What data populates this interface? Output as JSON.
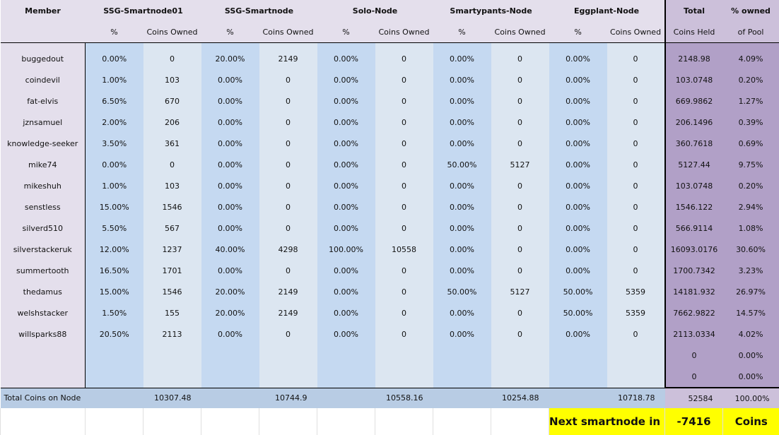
{
  "header": {
    "member": "Member",
    "nodes": [
      "SSG-Smartnode01",
      "SSG-Smartnode",
      "Solo-Node",
      "Smartypants-Node",
      "Eggplant-Node"
    ],
    "pct_label": "%",
    "coins_label": "Coins Owned",
    "total_label": "Total",
    "owned_label": "% owned",
    "coins_held_label": "Coins Held",
    "of_pool_label": "of Pool"
  },
  "rows": [
    {
      "member": "buggedout",
      "cells": [
        "0.00%",
        "0",
        "20.00%",
        "2149",
        "0.00%",
        "0",
        "0.00%",
        "0",
        "0.00%",
        "0"
      ],
      "total": "2148.98",
      "owned": "4.09%"
    },
    {
      "member": "coindevil",
      "cells": [
        "1.00%",
        "103",
        "0.00%",
        "0",
        "0.00%",
        "0",
        "0.00%",
        "0",
        "0.00%",
        "0"
      ],
      "total": "103.0748",
      "owned": "0.20%"
    },
    {
      "member": "fat-elvis",
      "cells": [
        "6.50%",
        "670",
        "0.00%",
        "0",
        "0.00%",
        "0",
        "0.00%",
        "0",
        "0.00%",
        "0"
      ],
      "total": "669.9862",
      "owned": "1.27%"
    },
    {
      "member": "jznsamuel",
      "cells": [
        "2.00%",
        "206",
        "0.00%",
        "0",
        "0.00%",
        "0",
        "0.00%",
        "0",
        "0.00%",
        "0"
      ],
      "total": "206.1496",
      "owned": "0.39%"
    },
    {
      "member": "knowledge-seeker",
      "cells": [
        "3.50%",
        "361",
        "0.00%",
        "0",
        "0.00%",
        "0",
        "0.00%",
        "0",
        "0.00%",
        "0"
      ],
      "total": "360.7618",
      "owned": "0.69%"
    },
    {
      "member": "mike74",
      "cells": [
        "0.00%",
        "0",
        "0.00%",
        "0",
        "0.00%",
        "0",
        "50.00%",
        "5127",
        "0.00%",
        "0"
      ],
      "total": "5127.44",
      "owned": "9.75%"
    },
    {
      "member": "mikeshuh",
      "cells": [
        "1.00%",
        "103",
        "0.00%",
        "0",
        "0.00%",
        "0",
        "0.00%",
        "0",
        "0.00%",
        "0"
      ],
      "total": "103.0748",
      "owned": "0.20%"
    },
    {
      "member": "senstless",
      "cells": [
        "15.00%",
        "1546",
        "0.00%",
        "0",
        "0.00%",
        "0",
        "0.00%",
        "0",
        "0.00%",
        "0"
      ],
      "total": "1546.122",
      "owned": "2.94%"
    },
    {
      "member": "silverd510",
      "cells": [
        "5.50%",
        "567",
        "0.00%",
        "0",
        "0.00%",
        "0",
        "0.00%",
        "0",
        "0.00%",
        "0"
      ],
      "total": "566.9114",
      "owned": "1.08%"
    },
    {
      "member": "silverstackeruk",
      "cells": [
        "12.00%",
        "1237",
        "40.00%",
        "4298",
        "100.00%",
        "10558",
        "0.00%",
        "0",
        "0.00%",
        "0"
      ],
      "total": "16093.0176",
      "owned": "30.60%"
    },
    {
      "member": "summertooth",
      "cells": [
        "16.50%",
        "1701",
        "0.00%",
        "0",
        "0.00%",
        "0",
        "0.00%",
        "0",
        "0.00%",
        "0"
      ],
      "total": "1700.7342",
      "owned": "3.23%"
    },
    {
      "member": "thedamus",
      "cells": [
        "15.00%",
        "1546",
        "20.00%",
        "2149",
        "0.00%",
        "0",
        "50.00%",
        "5127",
        "50.00%",
        "5359"
      ],
      "total": "14181.932",
      "owned": "26.97%"
    },
    {
      "member": "welshstacker",
      "cells": [
        "1.50%",
        "155",
        "20.00%",
        "2149",
        "0.00%",
        "0",
        "0.00%",
        "0",
        "50.00%",
        "5359"
      ],
      "total": "7662.9822",
      "owned": "14.57%"
    },
    {
      "member": "willsparks88",
      "cells": [
        "20.50%",
        "2113",
        "0.00%",
        "0",
        "0.00%",
        "0",
        "0.00%",
        "0",
        "0.00%",
        "0"
      ],
      "total": "2113.0334",
      "owned": "4.02%"
    },
    {
      "member": "",
      "cells": [
        "",
        "",
        "",
        "",
        "",
        "",
        "",
        "",
        "",
        ""
      ],
      "total": "0",
      "owned": "0.00%"
    },
    {
      "member": "",
      "cells": [
        "",
        "",
        "",
        "",
        "",
        "",
        "",
        "",
        "",
        ""
      ],
      "total": "0",
      "owned": "0.00%"
    }
  ],
  "summary": {
    "label": "Total Coins on Node",
    "node_totals": [
      "10307.48",
      "10744.9",
      "10558.16",
      "10254.88",
      "10718.78"
    ],
    "total": "52584",
    "owned": "100.00%"
  },
  "footer": {
    "next_label": "Next smartnode in",
    "next_value": "-7416",
    "next_unit": "Coins"
  },
  "colors": {
    "member_bg": "#e4dfec",
    "pct_bg": "#c5d9f1",
    "coins_bg": "#dce6f1",
    "total_bg": "#b1a0c7",
    "summary_bg": "#b8cce4",
    "highlight": "#ffff00"
  }
}
